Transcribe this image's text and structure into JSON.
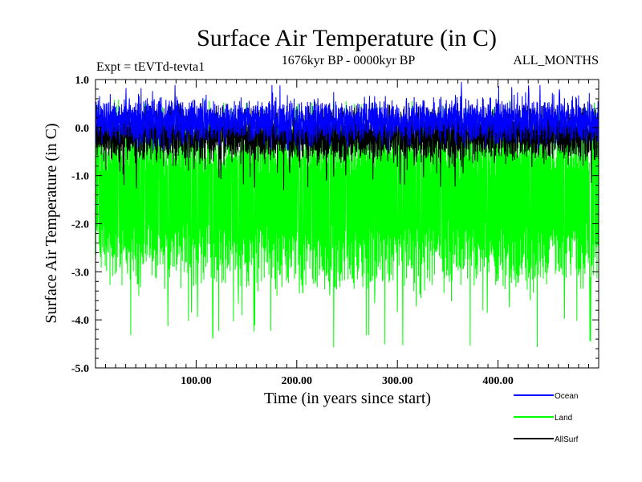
{
  "chart_data": {
    "type": "line",
    "title": "Surface Air Temperature (in C)",
    "subtitle": "1676kyr BP - 0000kyr BP",
    "left_annotation": "Expt = tEVTd-tevta1",
    "right_annotation": "ALL_MONTHS",
    "xlabel": "Time (in years since start)",
    "ylabel": "Surface Air Temperature (in C)",
    "xlim": [
      0,
      500
    ],
    "ylim": [
      -5.0,
      1.0
    ],
    "x_ticks": [
      {
        "value": 100,
        "label": "100.00"
      },
      {
        "value": 200,
        "label": "200.00"
      },
      {
        "value": 300,
        "label": "300.00"
      },
      {
        "value": 400,
        "label": "400.00"
      }
    ],
    "y_ticks": [
      {
        "value": 1.0,
        "label": "1.0"
      },
      {
        "value": 0.0,
        "label": "0.0"
      },
      {
        "value": -1.0,
        "label": "-1.0"
      },
      {
        "value": -2.0,
        "label": "-2.0"
      },
      {
        "value": -3.0,
        "label": "-3.0"
      },
      {
        "value": -4.0,
        "label": "-4.0"
      },
      {
        "value": -5.0,
        "label": "-5.0"
      }
    ],
    "series": [
      {
        "name": "Land",
        "color": "#00ff00",
        "draw_order": 1,
        "mean": -1.5,
        "typical_range": [
          -3.3,
          0.3
        ],
        "min": -4.6,
        "max": 0.6
      },
      {
        "name": "AllSurf",
        "color": "#000000",
        "draw_order": 2,
        "mean": 0.0,
        "typical_range": [
          -0.6,
          0.3
        ],
        "min": -1.3,
        "max": 0.5
      },
      {
        "name": "Ocean",
        "color": "#0000ff",
        "draw_order": 3,
        "mean": 0.15,
        "typical_range": [
          -0.2,
          0.5
        ],
        "min": -0.5,
        "max": 0.95
      }
    ],
    "legend": [
      {
        "label": "Ocean",
        "color": "#0000ff"
      },
      {
        "label": "Land",
        "color": "#00ff00"
      },
      {
        "label": "AllSurf",
        "color": "#000000"
      }
    ],
    "legend_position": "bottom-right"
  }
}
